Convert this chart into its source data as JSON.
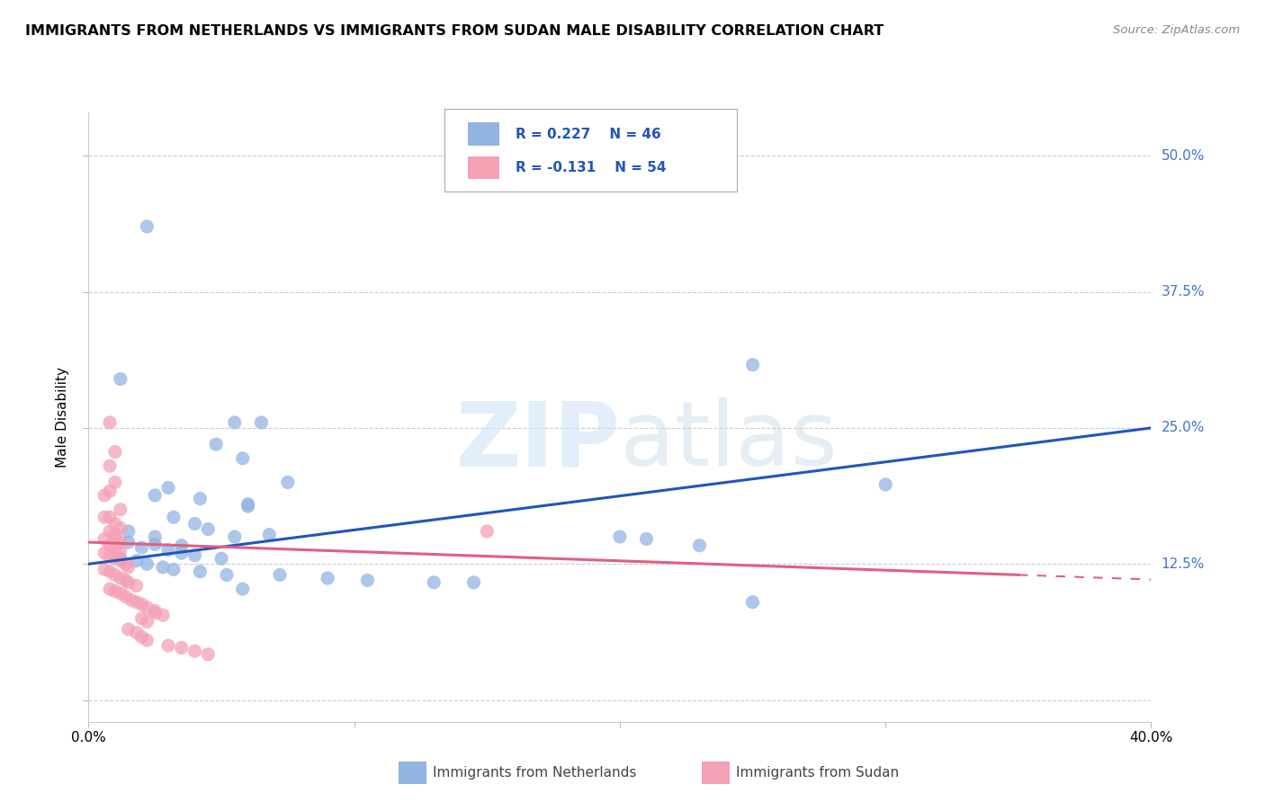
{
  "title": "IMMIGRANTS FROM NETHERLANDS VS IMMIGRANTS FROM SUDAN MALE DISABILITY CORRELATION CHART",
  "source": "Source: ZipAtlas.com",
  "ylabel": "Male Disability",
  "xlim": [
    0.0,
    0.4
  ],
  "ylim": [
    -0.02,
    0.54
  ],
  "yticks": [
    0.0,
    0.125,
    0.25,
    0.375,
    0.5
  ],
  "ytick_labels": [
    "",
    "12.5%",
    "25.0%",
    "37.5%",
    "50.0%"
  ],
  "xticks": [
    0.0,
    0.1,
    0.2,
    0.3,
    0.4
  ],
  "xtick_labels": [
    "0.0%",
    "",
    "",
    "",
    "40.0%"
  ],
  "netherlands_color": "#92b4e3",
  "sudan_color": "#f4a0b5",
  "netherlands_line_color": "#2255bb",
  "sudan_line_color": "#e06080",
  "R_netherlands": 0.227,
  "N_netherlands": 46,
  "R_sudan": -0.131,
  "N_sudan": 54,
  "nl_line": [
    [
      0.0,
      0.125
    ],
    [
      0.4,
      0.25
    ]
  ],
  "sd_line_solid": [
    [
      0.0,
      0.145
    ],
    [
      0.35,
      0.115
    ]
  ],
  "sd_line_dash": [
    [
      0.35,
      0.115
    ],
    [
      0.4,
      0.108
    ]
  ],
  "netherlands_points": [
    [
      0.022,
      0.435
    ],
    [
      0.012,
      0.295
    ],
    [
      0.055,
      0.255
    ],
    [
      0.065,
      0.255
    ],
    [
      0.048,
      0.235
    ],
    [
      0.058,
      0.222
    ],
    [
      0.075,
      0.2
    ],
    [
      0.03,
      0.195
    ],
    [
      0.025,
      0.188
    ],
    [
      0.042,
      0.185
    ],
    [
      0.06,
      0.178
    ],
    [
      0.032,
      0.168
    ],
    [
      0.04,
      0.162
    ],
    [
      0.045,
      0.157
    ],
    [
      0.015,
      0.155
    ],
    [
      0.025,
      0.15
    ],
    [
      0.055,
      0.15
    ],
    [
      0.015,
      0.145
    ],
    [
      0.025,
      0.143
    ],
    [
      0.035,
      0.142
    ],
    [
      0.02,
      0.14
    ],
    [
      0.03,
      0.138
    ],
    [
      0.035,
      0.135
    ],
    [
      0.04,
      0.133
    ],
    [
      0.05,
      0.13
    ],
    [
      0.012,
      0.13
    ],
    [
      0.018,
      0.128
    ],
    [
      0.022,
      0.125
    ],
    [
      0.028,
      0.122
    ],
    [
      0.032,
      0.12
    ],
    [
      0.042,
      0.118
    ],
    [
      0.052,
      0.115
    ],
    [
      0.072,
      0.115
    ],
    [
      0.09,
      0.112
    ],
    [
      0.105,
      0.11
    ],
    [
      0.13,
      0.108
    ],
    [
      0.145,
      0.108
    ],
    [
      0.2,
      0.15
    ],
    [
      0.21,
      0.148
    ],
    [
      0.23,
      0.142
    ],
    [
      0.25,
      0.09
    ],
    [
      0.3,
      0.198
    ],
    [
      0.25,
      0.308
    ],
    [
      0.06,
      0.18
    ],
    [
      0.068,
      0.152
    ],
    [
      0.058,
      0.102
    ]
  ],
  "sudan_points": [
    [
      0.008,
      0.255
    ],
    [
      0.01,
      0.228
    ],
    [
      0.008,
      0.215
    ],
    [
      0.01,
      0.2
    ],
    [
      0.008,
      0.192
    ],
    [
      0.006,
      0.188
    ],
    [
      0.012,
      0.175
    ],
    [
      0.008,
      0.168
    ],
    [
      0.01,
      0.162
    ],
    [
      0.012,
      0.158
    ],
    [
      0.008,
      0.155
    ],
    [
      0.01,
      0.15
    ],
    [
      0.006,
      0.148
    ],
    [
      0.012,
      0.145
    ],
    [
      0.008,
      0.142
    ],
    [
      0.01,
      0.14
    ],
    [
      0.012,
      0.138
    ],
    [
      0.006,
      0.135
    ],
    [
      0.008,
      0.132
    ],
    [
      0.01,
      0.13
    ],
    [
      0.012,
      0.128
    ],
    [
      0.014,
      0.125
    ],
    [
      0.015,
      0.122
    ],
    [
      0.006,
      0.12
    ],
    [
      0.008,
      0.118
    ],
    [
      0.01,
      0.115
    ],
    [
      0.012,
      0.112
    ],
    [
      0.014,
      0.11
    ],
    [
      0.015,
      0.108
    ],
    [
      0.018,
      0.105
    ],
    [
      0.008,
      0.102
    ],
    [
      0.01,
      0.1
    ],
    [
      0.012,
      0.098
    ],
    [
      0.014,
      0.095
    ],
    [
      0.016,
      0.092
    ],
    [
      0.018,
      0.09
    ],
    [
      0.02,
      0.088
    ],
    [
      0.022,
      0.085
    ],
    [
      0.025,
      0.082
    ],
    [
      0.025,
      0.08
    ],
    [
      0.028,
      0.078
    ],
    [
      0.02,
      0.075
    ],
    [
      0.022,
      0.072
    ],
    [
      0.015,
      0.065
    ],
    [
      0.018,
      0.062
    ],
    [
      0.02,
      0.058
    ],
    [
      0.022,
      0.055
    ],
    [
      0.03,
      0.05
    ],
    [
      0.035,
      0.048
    ],
    [
      0.04,
      0.045
    ],
    [
      0.045,
      0.042
    ],
    [
      0.15,
      0.155
    ],
    [
      0.006,
      0.168
    ],
    [
      0.01,
      0.152
    ]
  ]
}
